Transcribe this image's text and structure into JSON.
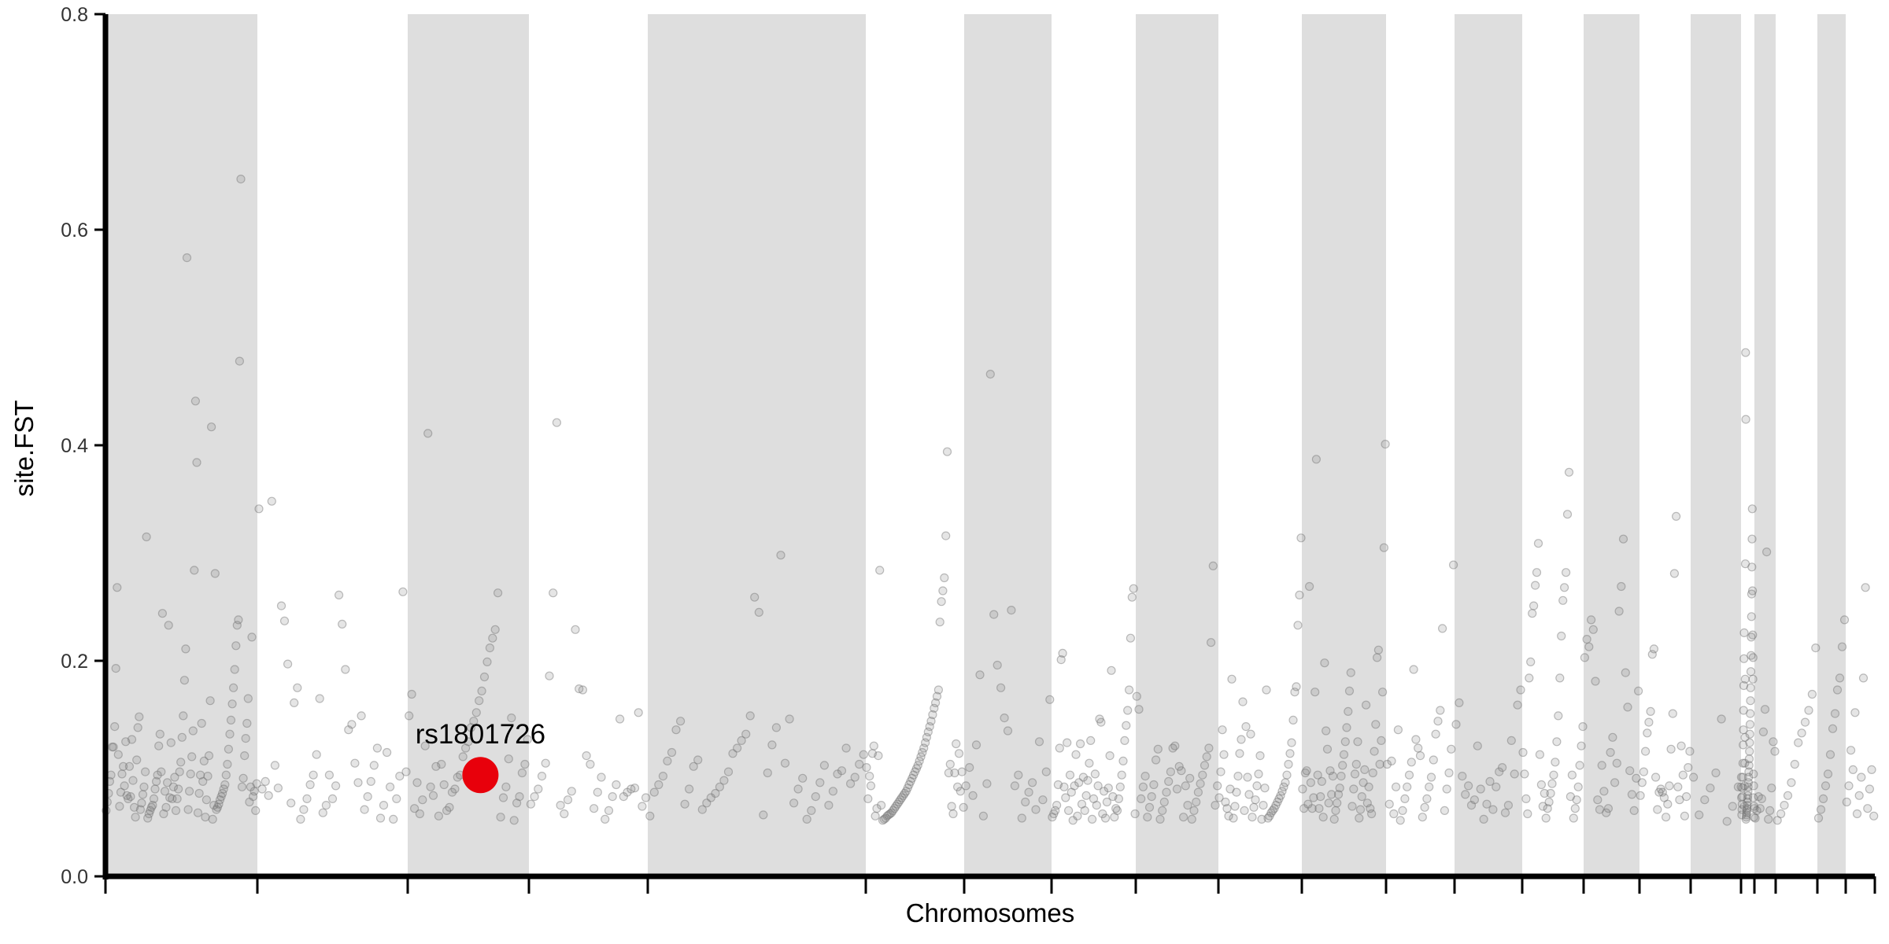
{
  "chart_data": {
    "type": "scatter",
    "title": "",
    "xlabel": "Chromosomes",
    "ylabel": "site.FST",
    "ylim": [
      0,
      0.8
    ],
    "yticks": [
      "0.0",
      "0.2",
      "0.4",
      "0.6",
      "0.8"
    ],
    "grid": false,
    "legend": "none",
    "colors": {
      "band": "#dedede",
      "point": "#707070",
      "highlight": "#e8000b",
      "axis": "#000000"
    },
    "chromosome_boundaries": [
      0,
      1,
      2,
      3,
      4,
      5,
      6,
      7,
      8,
      9,
      10,
      11,
      12,
      13,
      14,
      15,
      16,
      17,
      18,
      19,
      20,
      21,
      22,
      23,
      24
    ],
    "shaded_bands": [
      [
        0,
        1
      ],
      [
        2,
        3
      ],
      [
        4,
        5
      ],
      [
        6,
        7
      ],
      [
        8,
        9
      ],
      [
        10,
        11
      ],
      [
        12,
        13
      ],
      [
        14,
        15
      ],
      [
        16,
        17
      ],
      [
        18,
        19
      ],
      [
        20,
        21
      ],
      [
        22,
        23
      ]
    ],
    "highlight": {
      "label": "rs1801726",
      "chromosome": 3,
      "position": 0.6,
      "fst": 0.094
    },
    "points": [
      {
        "chr": 1,
        "values": [
          0.061,
          0.069,
          0.077,
          0.088,
          0.094,
          0.12,
          0.12,
          0.139,
          0.193,
          0.268,
          0.113,
          0.065,
          0.078,
          0.095,
          0.102,
          0.084,
          0.125,
          0.075,
          0.072,
          0.102,
          0.074,
          0.127,
          0.089,
          0.064,
          0.055,
          0.108,
          0.138,
          0.148,
          0.062,
          0.068,
          0.076,
          0.083,
          0.097,
          0.315,
          0.054,
          0.058,
          0.061,
          0.064,
          0.066,
          0.072,
          0.081,
          0.088,
          0.094,
          0.121,
          0.132,
          0.097,
          0.244,
          0.058,
          0.079,
          0.064,
          0.087,
          0.233,
          0.073,
          0.124,
          0.072,
          0.083,
          0.092,
          0.061,
          0.072,
          0.081,
          0.097,
          0.106,
          0.129,
          0.149,
          0.182,
          0.211,
          0.574,
          0.062,
          0.079,
          0.095,
          0.111,
          0.135,
          0.284,
          0.441,
          0.384,
          0.059,
          0.077,
          0.094,
          0.142,
          0.088,
          0.107,
          0.055,
          0.071,
          0.093,
          0.112,
          0.163,
          0.417,
          0.053,
          0.066,
          0.281,
          0.062,
          0.064,
          0.067,
          0.071,
          0.074,
          0.077,
          0.081,
          0.085,
          0.094,
          0.104,
          0.118,
          0.132,
          0.145,
          0.16,
          0.175,
          0.192,
          0.214,
          0.233,
          0.238,
          0.478,
          0.647,
          0.083,
          0.091,
          0.112,
          0.128,
          0.142,
          0.165,
          0.069,
          0.083,
          0.222,
          0.074,
          0.079,
          0.061,
          0.086
        ]
      },
      {
        "chr": 2,
        "values": [
          0.341,
          0.081,
          0.088,
          0.075,
          0.348,
          0.103,
          0.082,
          0.251,
          0.237,
          0.197,
          0.068,
          0.161,
          0.175,
          0.053,
          0.062,
          0.072,
          0.085,
          0.094,
          0.113,
          0.165,
          0.059,
          0.066,
          0.094,
          0.072,
          0.084,
          0.261,
          0.234,
          0.192,
          0.136,
          0.141,
          0.105,
          0.087,
          0.149,
          0.062,
          0.074,
          0.088,
          0.103,
          0.119,
          0.054,
          0.066,
          0.115,
          0.083,
          0.053,
          0.072,
          0.093,
          0.264,
          0.097
        ]
      },
      {
        "chr": 3,
        "values": [
          0.149,
          0.169,
          0.063,
          0.087,
          0.058,
          0.071,
          0.121,
          0.411,
          0.083,
          0.075,
          0.102,
          0.056,
          0.104,
          0.085,
          0.061,
          0.064,
          0.078,
          0.081,
          0.092,
          0.094,
          0.111,
          0.119,
          0.125,
          0.138,
          0.144,
          0.152,
          0.163,
          0.172,
          0.185,
          0.199,
          0.212,
          0.221,
          0.229,
          0.263,
          0.055,
          0.073,
          0.083,
          0.109,
          0.147,
          0.052,
          0.068,
          0.074,
          0.096,
          0.104,
          0.127
        ]
      },
      {
        "chr": 4,
        "values": [
          0.067,
          0.074,
          0.081,
          0.093,
          0.105,
          0.186,
          0.263,
          0.421,
          0.066,
          0.058,
          0.071,
          0.079,
          0.229,
          0.174,
          0.173,
          0.112,
          0.104,
          0.063,
          0.078,
          0.092,
          0.053,
          0.061,
          0.074,
          0.085,
          0.146,
          0.074,
          0.078,
          0.081,
          0.082,
          0.152,
          0.065,
          0.073
        ]
      },
      {
        "chr": 5,
        "values": [
          0.056,
          0.078,
          0.085,
          0.093,
          0.107,
          0.115,
          0.136,
          0.144,
          0.067,
          0.081,
          0.102,
          0.108,
          0.062,
          0.068,
          0.073,
          0.077,
          0.083,
          0.089,
          0.097,
          0.114,
          0.119,
          0.126,
          0.132,
          0.149,
          0.259,
          0.245,
          0.057,
          0.096,
          0.122,
          0.138,
          0.298,
          0.105,
          0.146,
          0.068,
          0.081,
          0.091,
          0.053,
          0.061,
          0.074,
          0.087,
          0.103,
          0.066,
          0.079,
          0.095,
          0.098,
          0.119,
          0.086,
          0.092,
          0.104,
          0.113
        ]
      },
      {
        "chr": 6,
        "values": [
          0.101,
          0.072,
          0.093,
          0.084,
          0.114,
          0.121,
          0.056,
          0.063,
          0.112,
          0.284,
          0.066,
          0.052,
          0.053,
          0.054,
          0.056,
          0.057,
          0.058,
          0.059,
          0.061,
          0.063,
          0.065,
          0.067,
          0.069,
          0.071,
          0.073,
          0.075,
          0.077,
          0.079,
          0.082,
          0.085,
          0.088,
          0.091,
          0.094,
          0.097,
          0.1,
          0.103,
          0.107,
          0.111,
          0.115,
          0.119,
          0.124,
          0.129,
          0.134,
          0.139,
          0.144,
          0.15,
          0.156,
          0.161,
          0.167,
          0.173,
          0.236,
          0.255,
          0.265,
          0.277,
          0.316,
          0.394,
          0.096,
          0.104,
          0.065,
          0.058,
          0.096,
          0.123,
          0.083,
          0.114,
          0.079,
          0.097,
          0.064
        ]
      },
      {
        "chr": 7,
        "values": [
          0.084,
          0.101,
          0.075,
          0.122,
          0.187,
          0.056,
          0.086,
          0.466,
          0.243,
          0.196,
          0.175,
          0.147,
          0.135,
          0.247,
          0.084,
          0.094,
          0.054,
          0.069,
          0.078,
          0.087,
          0.062,
          0.125,
          0.071,
          0.097,
          0.164
        ]
      },
      {
        "chr": 8,
        "values": [
          0.055,
          0.058,
          0.061,
          0.066,
          0.085,
          0.119,
          0.201,
          0.207,
          0.083,
          0.073,
          0.124,
          0.061,
          0.094,
          0.078,
          0.052,
          0.084,
          0.113,
          0.056,
          0.087,
          0.123,
          0.067,
          0.092,
          0.061,
          0.075,
          0.089,
          0.105,
          0.126,
          0.053,
          0.072,
          0.095,
          0.066,
          0.084,
          0.146,
          0.143,
          0.058,
          0.079,
          0.054,
          0.069,
          0.082,
          0.112,
          0.191,
          0.074,
          0.055,
          0.063,
          0.061,
          0.072,
          0.083,
          0.094,
          0.107,
          0.126,
          0.14,
          0.154,
          0.173,
          0.221,
          0.259,
          0.267,
          0.058
        ]
      },
      {
        "chr": 9,
        "values": [
          0.167,
          0.155,
          0.072,
          0.083,
          0.093,
          0.055,
          0.064,
          0.074,
          0.085,
          0.108,
          0.118,
          0.053,
          0.061,
          0.069,
          0.078,
          0.088,
          0.097,
          0.119,
          0.121,
          0.081,
          0.102,
          0.098,
          0.055,
          0.084,
          0.066,
          0.091,
          0.053,
          0.061,
          0.069,
          0.078,
          0.086,
          0.094,
          0.103,
          0.111,
          0.119,
          0.217,
          0.288,
          0.066,
          0.084
        ]
      },
      {
        "chr": 10,
        "values": [
          0.073,
          0.097,
          0.136,
          0.113,
          0.069,
          0.063,
          0.056,
          0.081,
          0.183,
          0.054,
          0.065,
          0.078,
          0.093,
          0.114,
          0.127,
          0.162,
          0.061,
          0.139,
          0.092,
          0.076,
          0.132,
          0.055,
          0.064,
          0.071,
          0.084,
          0.095,
          0.112,
          0.053,
          0.066,
          0.082,
          0.173,
          0.054,
          0.056,
          0.059,
          0.061,
          0.063,
          0.066,
          0.069,
          0.072,
          0.075,
          0.079,
          0.083,
          0.087,
          0.094,
          0.104,
          0.114,
          0.124,
          0.145,
          0.171,
          0.176,
          0.233,
          0.261,
          0.314
        ]
      },
      {
        "chr": 11,
        "values": [
          0.081,
          0.063,
          0.096,
          0.098,
          0.067,
          0.269,
          0.087,
          0.063,
          0.073,
          0.171,
          0.387,
          0.094,
          0.063,
          0.074,
          0.088,
          0.055,
          0.198,
          0.135,
          0.118,
          0.068,
          0.098,
          0.076,
          0.093,
          0.053,
          0.061,
          0.068,
          0.076,
          0.082,
          0.093,
          0.103,
          0.113,
          0.125,
          0.138,
          0.153,
          0.172,
          0.189,
          0.065,
          0.081,
          0.095,
          0.104,
          0.125,
          0.054,
          0.062,
          0.074,
          0.087,
          0.099,
          0.159,
          0.068,
          0.083,
          0.063,
          0.058,
          0.096,
          0.116,
          0.141,
          0.203,
          0.21,
          0.104,
          0.126,
          0.171,
          0.305,
          0.401
        ]
      },
      {
        "chr": 12,
        "values": [
          0.104,
          0.067,
          0.107,
          0.058,
          0.083,
          0.136,
          0.052,
          0.061,
          0.072,
          0.083,
          0.094,
          0.106,
          0.192,
          0.127,
          0.119,
          0.112,
          0.055,
          0.064,
          0.072,
          0.083,
          0.092,
          0.108,
          0.132,
          0.144,
          0.154,
          0.23,
          0.061,
          0.081,
          0.096,
          0.118,
          0.289
        ]
      },
      {
        "chr": 13,
        "values": [
          0.141,
          0.161,
          0.093,
          0.076,
          0.084,
          0.066,
          0.071,
          0.121,
          0.081,
          0.053,
          0.067,
          0.088,
          0.062,
          0.083,
          0.097,
          0.101,
          0.059,
          0.066,
          0.126,
          0.095,
          0.159,
          0.173
        ]
      },
      {
        "chr": 14,
        "values": [
          0.115,
          0.095,
          0.072,
          0.058,
          0.184,
          0.199,
          0.244,
          0.251,
          0.27,
          0.282,
          0.309,
          0.113,
          0.085,
          0.065,
          0.077,
          0.054,
          0.063,
          0.069,
          0.077,
          0.086,
          0.094,
          0.106,
          0.125,
          0.149,
          0.184,
          0.223,
          0.256,
          0.268,
          0.282,
          0.336,
          0.375,
          0.074,
          0.094,
          0.054,
          0.063,
          0.071,
          0.083,
          0.103,
          0.121,
          0.139
        ]
      },
      {
        "chr": 15,
        "values": [
          0.203,
          0.22,
          0.213,
          0.238,
          0.229,
          0.181,
          0.071,
          0.062,
          0.103,
          0.079,
          0.059,
          0.063,
          0.115,
          0.129,
          0.087,
          0.105,
          0.246,
          0.269,
          0.313,
          0.189,
          0.157,
          0.098,
          0.076,
          0.061,
          0.091,
          0.172
        ]
      },
      {
        "chr": 16,
        "values": [
          0.075,
          0.087,
          0.097,
          0.116,
          0.133,
          0.143,
          0.153,
          0.206,
          0.211,
          0.092,
          0.062,
          0.078,
          0.081,
          0.078,
          0.073,
          0.055,
          0.067,
          0.084,
          0.118,
          0.151,
          0.281,
          0.334,
          0.083,
          0.071,
          0.121,
          0.094,
          0.056,
          0.074,
          0.101,
          0.116
        ]
      },
      {
        "chr": 17,
        "values": [
          0.092,
          0.057,
          0.071,
          0.082,
          0.096,
          0.146,
          0.051,
          0.065,
          0.083
        ]
      },
      {
        "chr": 18,
        "values": [
          0.083,
          0.092,
          0.073,
          0.057,
          0.062,
          0.067,
          0.074,
          0.082,
          0.092,
          0.105,
          0.122,
          0.136,
          0.154,
          0.177,
          0.202,
          0.226,
          0.065,
          0.084,
          0.105,
          0.129,
          0.183,
          0.29,
          0.486,
          0.424,
          0.053,
          0.055,
          0.057,
          0.059,
          0.061,
          0.063,
          0.066,
          0.069,
          0.072,
          0.075,
          0.079,
          0.083,
          0.087,
          0.092,
          0.097,
          0.103,
          0.109,
          0.116,
          0.124,
          0.132,
          0.141,
          0.151,
          0.163,
          0.175,
          0.19,
          0.205,
          0.222,
          0.241,
          0.262,
          0.287,
          0.313,
          0.341,
          0.265,
          0.224,
          0.183,
          0.203,
          0.073,
          0.095,
          0.084,
          0.055,
          0.065,
          0.063
        ]
      },
      {
        "chr": 19,
        "values": [
          0.054,
          0.061,
          0.074,
          0.063,
          0.072,
          0.134,
          0.155,
          0.301,
          0.053,
          0.061,
          0.082,
          0.125,
          0.116
        ]
      },
      {
        "chr": 20,
        "values": [
          0.052,
          0.058,
          0.066,
          0.075,
          0.087,
          0.104,
          0.124,
          0.133,
          0.143,
          0.154,
          0.169,
          0.212
        ]
      },
      {
        "chr": 21,
        "values": [
          0.054,
          0.062,
          0.072,
          0.084,
          0.095,
          0.113,
          0.137,
          0.151,
          0.173,
          0.184,
          0.213,
          0.238
        ]
      },
      {
        "chr": 22,
        "values": [
          0.069,
          0.084,
          0.117,
          0.099,
          0.152,
          0.058,
          0.075,
          0.092,
          0.184,
          0.268,
          0.063,
          0.081,
          0.099,
          0.056
        ]
      }
    ]
  }
}
